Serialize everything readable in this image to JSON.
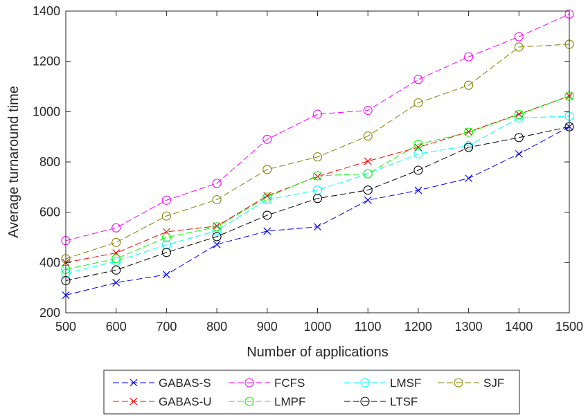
{
  "chart_data": {
    "type": "line",
    "title": "",
    "xlabel": "Number of applications",
    "ylabel": "Average turnaround time",
    "xlim": [
      500,
      1500
    ],
    "ylim": [
      200,
      1400
    ],
    "xticks": [
      500,
      600,
      700,
      800,
      900,
      1000,
      1100,
      1200,
      1300,
      1400,
      1500
    ],
    "yticks": [
      200,
      400,
      600,
      800,
      1000,
      1200,
      1400
    ],
    "grid": false,
    "legend_position": "bottom",
    "x": [
      500,
      600,
      700,
      800,
      900,
      1000,
      1100,
      1200,
      1300,
      1400,
      1500
    ],
    "series": [
      {
        "name": "GABAS-S",
        "color": "#0000ff",
        "marker": "x",
        "values": [
          270,
          320,
          352,
          472,
          525,
          542,
          648,
          687,
          735,
          832,
          940
        ]
      },
      {
        "name": "FCFS",
        "color": "#ff00ff",
        "marker": "o",
        "values": [
          487,
          538,
          648,
          715,
          890,
          990,
          1005,
          1128,
          1218,
          1298,
          1388
        ]
      },
      {
        "name": "LMSF",
        "color": "#00ffff",
        "marker": "o",
        "values": [
          357,
          405,
          470,
          527,
          650,
          688,
          753,
          832,
          865,
          975,
          982
        ]
      },
      {
        "name": "SJF",
        "color": "#808000",
        "marker": "o",
        "values": [
          415,
          480,
          585,
          650,
          770,
          820,
          903,
          1035,
          1105,
          1257,
          1268
        ]
      },
      {
        "name": "GABAS-U",
        "color": "#ff0000",
        "marker": "x",
        "values": [
          400,
          438,
          522,
          545,
          665,
          742,
          803,
          858,
          920,
          990,
          1062
        ]
      },
      {
        "name": "LMPF",
        "color": "#00ff00",
        "marker": "o",
        "values": [
          373,
          415,
          500,
          542,
          660,
          745,
          753,
          870,
          918,
          988,
          1062
        ]
      },
      {
        "name": "LTSF",
        "color": "#000000",
        "marker": "o",
        "values": [
          328,
          370,
          440,
          503,
          588,
          655,
          688,
          767,
          858,
          897,
          940
        ]
      }
    ],
    "legend_layout": [
      [
        "GABAS-S",
        "FCFS",
        "LMSF",
        "SJF"
      ],
      [
        "GABAS-U",
        "LMPF",
        "LTSF"
      ]
    ]
  }
}
